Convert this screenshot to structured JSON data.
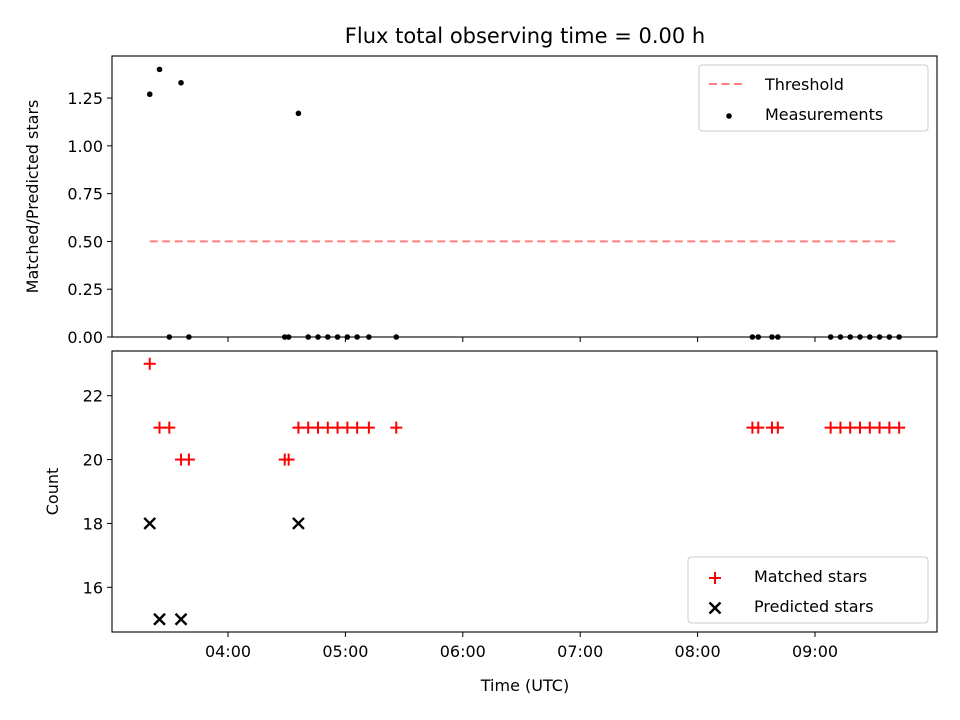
{
  "title": "Flux total observing time = 0.00 h",
  "xlabel": "Time (UTC)",
  "chart_data": [
    {
      "type": "scatter",
      "ylabel": "Matched/Predicted stars",
      "ylim": [
        0.0,
        1.47
      ],
      "yticks": [
        0.0,
        0.25,
        0.5,
        0.75,
        1.0,
        1.25
      ],
      "ytick_labels": [
        "0.00",
        "0.25",
        "0.50",
        "0.75",
        "1.00",
        "1.25"
      ],
      "xticks": [
        "04:00",
        "05:00",
        "06:00",
        "07:00",
        "08:00",
        "09:00"
      ],
      "xticks_labeled": false,
      "legend": {
        "placement": "top-right",
        "entries": [
          "Threshold",
          "Measurements"
        ]
      },
      "threshold": {
        "name": "Threshold",
        "value": 0.5,
        "x_start": "03:20",
        "x_end": "09:42",
        "color": "#ff8080",
        "style": "dashed"
      },
      "series": [
        {
          "name": "Measurements",
          "color": "#000000",
          "marker": "dot",
          "points": [
            {
              "x": "03:20",
              "y": 1.27
            },
            {
              "x": "03:25",
              "y": 1.4
            },
            {
              "x": "03:30",
              "y": 0
            },
            {
              "x": "03:36",
              "y": 1.33
            },
            {
              "x": "03:40",
              "y": 0
            },
            {
              "x": "04:29",
              "y": 0
            },
            {
              "x": "04:31",
              "y": 0
            },
            {
              "x": "04:36",
              "y": 1.17
            },
            {
              "x": "04:41",
              "y": 0
            },
            {
              "x": "04:46",
              "y": 0
            },
            {
              "x": "04:51",
              "y": 0
            },
            {
              "x": "04:56",
              "y": 0
            },
            {
              "x": "05:01",
              "y": 0
            },
            {
              "x": "05:06",
              "y": 0
            },
            {
              "x": "05:12",
              "y": 0
            },
            {
              "x": "05:26",
              "y": 0
            },
            {
              "x": "08:28",
              "y": 0
            },
            {
              "x": "08:31",
              "y": 0
            },
            {
              "x": "08:38",
              "y": 0
            },
            {
              "x": "08:41",
              "y": 0
            },
            {
              "x": "09:08",
              "y": 0
            },
            {
              "x": "09:13",
              "y": 0
            },
            {
              "x": "09:18",
              "y": 0
            },
            {
              "x": "09:23",
              "y": 0
            },
            {
              "x": "09:28",
              "y": 0
            },
            {
              "x": "09:33",
              "y": 0
            },
            {
              "x": "09:38",
              "y": 0
            },
            {
              "x": "09:43",
              "y": 0
            }
          ]
        }
      ]
    },
    {
      "type": "scatter",
      "ylabel": "Count",
      "ylim": [
        14.6,
        23.4
      ],
      "yticks": [
        16,
        18,
        20,
        22
      ],
      "ytick_labels": [
        "16",
        "18",
        "20",
        "22"
      ],
      "xticks": [
        "04:00",
        "05:00",
        "06:00",
        "07:00",
        "08:00",
        "09:00"
      ],
      "xticks_labeled": true,
      "legend": {
        "placement": "bottom-right",
        "entries": [
          "Matched stars",
          "Predicted stars"
        ]
      },
      "series": [
        {
          "name": "Matched stars",
          "color": "#ff0000",
          "marker": "plus",
          "points": [
            {
              "x": "03:20",
              "y": 23
            },
            {
              "x": "03:25",
              "y": 21
            },
            {
              "x": "03:30",
              "y": 21
            },
            {
              "x": "03:36",
              "y": 20
            },
            {
              "x": "03:40",
              "y": 20
            },
            {
              "x": "04:29",
              "y": 20
            },
            {
              "x": "04:31",
              "y": 20
            },
            {
              "x": "04:36",
              "y": 21
            },
            {
              "x": "04:41",
              "y": 21
            },
            {
              "x": "04:46",
              "y": 21
            },
            {
              "x": "04:51",
              "y": 21
            },
            {
              "x": "04:56",
              "y": 21
            },
            {
              "x": "05:01",
              "y": 21
            },
            {
              "x": "05:06",
              "y": 21
            },
            {
              "x": "05:12",
              "y": 21
            },
            {
              "x": "05:26",
              "y": 21
            },
            {
              "x": "08:28",
              "y": 21
            },
            {
              "x": "08:31",
              "y": 21
            },
            {
              "x": "08:38",
              "y": 21
            },
            {
              "x": "08:41",
              "y": 21
            },
            {
              "x": "09:08",
              "y": 21
            },
            {
              "x": "09:13",
              "y": 21
            },
            {
              "x": "09:18",
              "y": 21
            },
            {
              "x": "09:23",
              "y": 21
            },
            {
              "x": "09:28",
              "y": 21
            },
            {
              "x": "09:33",
              "y": 21
            },
            {
              "x": "09:38",
              "y": 21
            },
            {
              "x": "09:43",
              "y": 21
            }
          ]
        },
        {
          "name": "Predicted stars",
          "color": "#000000",
          "marker": "x",
          "points": [
            {
              "x": "03:20",
              "y": 18
            },
            {
              "x": "03:25",
              "y": 15
            },
            {
              "x": "03:36",
              "y": 15
            },
            {
              "x": "04:36",
              "y": 18
            }
          ]
        }
      ]
    }
  ]
}
